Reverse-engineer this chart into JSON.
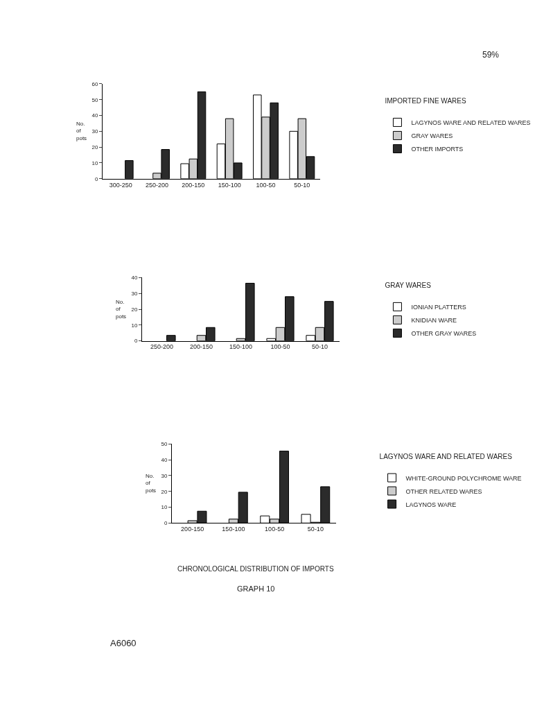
{
  "chart_data": [
    {
      "type": "bar",
      "legend_title": "IMPORTED FINE WARES",
      "ylabel": "No. of pots",
      "categories": [
        "300-250",
        "250-200",
        "200-150",
        "150-100",
        "100-50",
        "50-10"
      ],
      "ylim": [
        0,
        60
      ],
      "yticks": [
        0,
        10,
        20,
        30,
        40,
        50,
        60
      ],
      "legend": "right",
      "annotations": [
        "59%"
      ],
      "series": [
        {
          "name": "LAGYNOS WARE AND RELATED WARES",
          "color": "#ffffff",
          "values": [
            null,
            null,
            9.5,
            22,
            53,
            30
          ]
        },
        {
          "name": "GRAY WARES",
          "color": "#cccccc",
          "values": [
            null,
            3.5,
            12.5,
            38,
            39,
            38
          ]
        },
        {
          "name": "OTHER IMPORTS",
          "color": "#2b2b2b",
          "values": [
            11.5,
            18.5,
            55,
            10,
            48,
            14
          ]
        }
      ]
    },
    {
      "type": "bar",
      "legend_title": "GRAY WARES",
      "ylabel": "No. of pots",
      "categories": [
        "250-200",
        "200-150",
        "150-100",
        "100-50",
        "50-10"
      ],
      "ylim": [
        0,
        40
      ],
      "yticks": [
        0,
        10,
        20,
        30,
        40
      ],
      "legend": "right",
      "series": [
        {
          "name": "IONIAN PLATTERS",
          "color": "#ffffff",
          "values": [
            null,
            null,
            null,
            1.5,
            3.5
          ]
        },
        {
          "name": "KNIDIAN WARE",
          "color": "#cccccc",
          "values": [
            null,
            3.5,
            1.5,
            8.5,
            8.5
          ]
        },
        {
          "name": "OTHER GRAY WARES",
          "color": "#2b2b2b",
          "values": [
            3.5,
            8.5,
            36.5,
            28,
            25
          ]
        }
      ]
    },
    {
      "type": "bar",
      "legend_title": "LAGYNOS WARE AND RELATED WARES",
      "ylabel": "No. of pots",
      "categories": [
        "200-150",
        "150-100",
        "100-50",
        "50-10"
      ],
      "ylim": [
        0,
        50
      ],
      "yticks": [
        0,
        10,
        20,
        30,
        40,
        50
      ],
      "legend": "right",
      "annotations": [
        "CHRONOLOGICAL DISTRIBUTION OF IMPORTS",
        "GRAPH 10",
        "A6060"
      ],
      "series": [
        {
          "name": "WHITE-GROUND POLYCHROME WARE",
          "color": "#ffffff",
          "values": [
            null,
            null,
            4.5,
            5.5
          ]
        },
        {
          "name": "OTHER RELATED WARES",
          "color": "#cccccc",
          "values": [
            1.5,
            2.5,
            2.5,
            0.5
          ]
        },
        {
          "name": "LAGYNOS WARE",
          "color": "#2b2b2b",
          "values": [
            7.5,
            19.5,
            45.5,
            23
          ]
        }
      ]
    }
  ]
}
